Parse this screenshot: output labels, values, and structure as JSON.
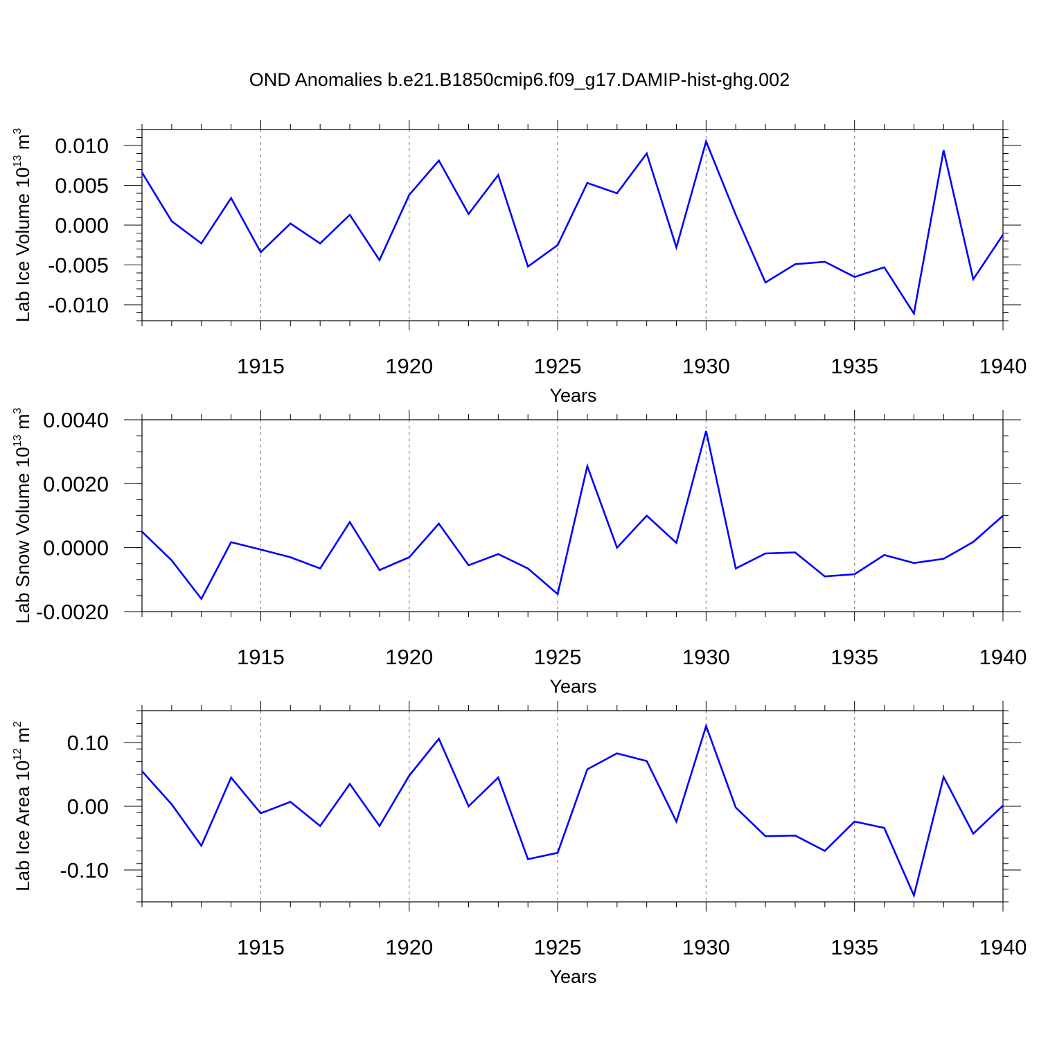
{
  "title": "OND Anomalies b.e21.B1850cmip6.f09_g17.DAMIP-hist-ghg.002",
  "chart_data": [
    {
      "type": "line",
      "x": [
        1911,
        1912,
        1913,
        1914,
        1915,
        1916,
        1917,
        1918,
        1919,
        1920,
        1921,
        1922,
        1923,
        1924,
        1925,
        1926,
        1927,
        1928,
        1929,
        1930,
        1931,
        1932,
        1933,
        1934,
        1935,
        1936,
        1937,
        1938,
        1939,
        1940
      ],
      "values": [
        0.0066,
        0.0005,
        -0.0023,
        0.0034,
        -0.0034,
        0.0002,
        -0.0023,
        0.0013,
        -0.0044,
        0.0038,
        0.0081,
        0.0014,
        0.0063,
        -0.0052,
        -0.0025,
        0.0053,
        0.004,
        0.009,
        -0.0028,
        0.0105,
        0.0013,
        -0.0072,
        -0.0049,
        -0.0046,
        -0.0065,
        -0.0053,
        -0.0111,
        0.0094,
        -0.0068,
        -0.0012
      ],
      "xlabel": "Years",
      "ylabel": "Lab Ice Volume 10",
      "ylabel_sup": "13",
      "ylabel_unit": "m",
      "ylabel_unit_sup": "3",
      "xlim": [
        1911,
        1940
      ],
      "ylim": [
        -0.012,
        0.012
      ],
      "xticks": [
        1915,
        1920,
        1925,
        1930,
        1935,
        1940
      ],
      "yticks": [
        -0.01,
        -0.005,
        0.0,
        0.005,
        0.01
      ],
      "ytick_labels": [
        "-0.010",
        "-0.005",
        "0.000",
        "0.005",
        "0.010"
      ],
      "yminor_step": 0.001,
      "color": "#0000ff"
    },
    {
      "type": "line",
      "x": [
        1911,
        1912,
        1913,
        1914,
        1915,
        1916,
        1917,
        1918,
        1919,
        1920,
        1921,
        1922,
        1923,
        1924,
        1925,
        1926,
        1927,
        1928,
        1929,
        1930,
        1931,
        1932,
        1933,
        1934,
        1935,
        1936,
        1937,
        1938,
        1939,
        1940
      ],
      "values": [
        0.0005,
        -0.0004,
        -0.0016,
        0.00017,
        -6e-05,
        -0.0003,
        -0.00065,
        0.0008,
        -0.0007,
        -0.0003,
        0.00075,
        -0.00055,
        -0.0002,
        -0.00065,
        -0.00145,
        0.00255,
        0.0,
        0.001,
        0.00015,
        0.00365,
        -0.00065,
        -0.00018,
        -0.00015,
        -0.0009,
        -0.00083,
        -0.00023,
        -0.00048,
        -0.00035,
        0.00018,
        0.001
      ],
      "xlabel": "Years",
      "ylabel": "Lab Snow Volume 10",
      "ylabel_sup": "13",
      "ylabel_unit": "m",
      "ylabel_unit_sup": "3",
      "xlim": [
        1911,
        1940
      ],
      "ylim": [
        -0.002,
        0.004
      ],
      "xticks": [
        1915,
        1920,
        1925,
        1930,
        1935,
        1940
      ],
      "yticks": [
        -0.002,
        0.0,
        0.002,
        0.004
      ],
      "ytick_labels": [
        "-0.0020",
        "0.0000",
        "0.0020",
        "0.0040"
      ],
      "yminor_step": 0.0005,
      "color": "#0000ff"
    },
    {
      "type": "line",
      "x": [
        1911,
        1912,
        1913,
        1914,
        1915,
        1916,
        1917,
        1918,
        1919,
        1920,
        1921,
        1922,
        1923,
        1924,
        1925,
        1926,
        1927,
        1928,
        1929,
        1930,
        1931,
        1932,
        1933,
        1934,
        1935,
        1936,
        1937,
        1938,
        1939,
        1940
      ],
      "values": [
        0.055,
        0.003,
        -0.062,
        0.045,
        -0.011,
        0.007,
        -0.031,
        0.035,
        -0.031,
        0.048,
        0.106,
        0.0,
        0.045,
        -0.083,
        -0.073,
        0.058,
        0.083,
        0.071,
        -0.024,
        0.126,
        -0.002,
        -0.047,
        -0.046,
        -0.07,
        -0.024,
        -0.034,
        -0.14,
        0.046,
        -0.043,
        0.001
      ],
      "xlabel": "Years",
      "ylabel": "Lab Ice Area 10",
      "ylabel_sup": "12",
      "ylabel_unit": "m",
      "ylabel_unit_sup": "2",
      "xlim": [
        1911,
        1940
      ],
      "ylim": [
        -0.15,
        0.15
      ],
      "xticks": [
        1915,
        1920,
        1925,
        1930,
        1935,
        1940
      ],
      "yticks": [
        -0.1,
        0.0,
        0.1
      ],
      "ytick_labels": [
        "-0.10",
        "0.00",
        "0.10"
      ],
      "yminor_step": 0.02,
      "color": "#0000ff"
    }
  ]
}
